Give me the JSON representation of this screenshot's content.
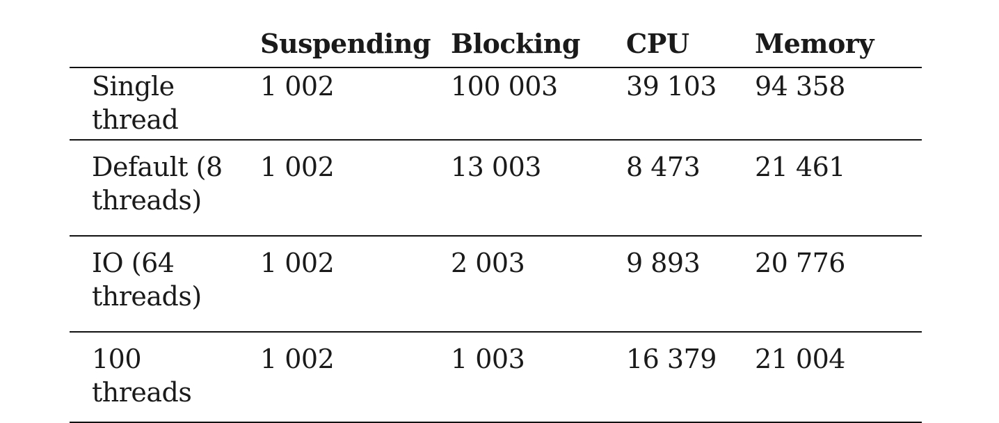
{
  "table": {
    "columns": [
      "",
      "Suspending",
      "Blocking",
      "CPU",
      "Memory"
    ],
    "rows": [
      {
        "label_lines": [
          "Single",
          "thread"
        ],
        "suspending": "1 002",
        "blocking": "100 003",
        "cpu": "39 103",
        "memory": "94 358"
      },
      {
        "label_lines": [
          "Default (8",
          "threads)"
        ],
        "suspending": "1 002",
        "blocking": "13 003",
        "cpu": "8 473",
        "memory": "21 461"
      },
      {
        "label_lines": [
          "IO (64",
          "threads)"
        ],
        "suspending": "1 002",
        "blocking": "2 003",
        "cpu": "9 893",
        "memory": "20 776"
      },
      {
        "label_lines": [
          "100",
          "threads"
        ],
        "suspending": "1 002",
        "blocking": "1 003",
        "cpu": "16 379",
        "memory": "21 004"
      }
    ]
  }
}
